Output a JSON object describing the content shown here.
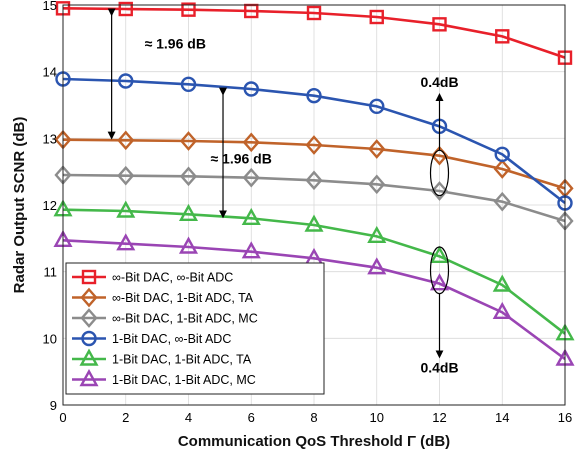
{
  "chart_data": {
    "type": "line",
    "title": "",
    "xlabel": "Communication QoS Threshold Γ (dB)",
    "ylabel": "Radar Output SCNR (dB)",
    "xlim": [
      0,
      16
    ],
    "ylim": [
      9,
      15
    ],
    "xticks": [
      "0",
      "2",
      "4",
      "6",
      "8",
      "10",
      "12",
      "14",
      "16"
    ],
    "yticks": [
      "9",
      "10",
      "11",
      "12",
      "13",
      "14",
      "15"
    ],
    "grid": true,
    "legend_position": "bottom-left",
    "x": [
      0,
      2,
      4,
      6,
      8,
      10,
      12,
      14,
      16
    ],
    "series": [
      {
        "name": "∞-Bit DAC, ∞-Bit ADC",
        "marker": "square",
        "color": "#e8202a",
        "values": [
          14.95,
          14.94,
          14.93,
          14.91,
          14.88,
          14.82,
          14.71,
          14.53,
          14.21
        ]
      },
      {
        "name": "∞-Bit DAC,   1-Bit ADC, TA",
        "marker": "diamond",
        "color": "#c0632a",
        "values": [
          12.98,
          12.97,
          12.96,
          12.94,
          12.9,
          12.84,
          12.74,
          12.54,
          12.25
        ]
      },
      {
        "name": "∞-Bit DAC,   1-Bit ADC, MC",
        "marker": "diamond",
        "color": "#8c8c8c",
        "values": [
          12.45,
          12.44,
          12.43,
          12.41,
          12.37,
          12.31,
          12.21,
          12.05,
          11.76
        ]
      },
      {
        "name": "1-Bit DAC, ∞-Bit ADC",
        "marker": "circle",
        "color": "#2b55b0",
        "values": [
          13.89,
          13.86,
          13.81,
          13.74,
          13.64,
          13.48,
          13.18,
          12.76,
          12.03
        ]
      },
      {
        "name": "1-Bit DAC,   1-Bit ADC, TA",
        "marker": "triangle",
        "color": "#44b84a",
        "values": [
          11.93,
          11.91,
          11.86,
          11.8,
          11.7,
          11.53,
          11.23,
          10.8,
          10.07
        ]
      },
      {
        "name": "1-Bit DAC,   1-Bit ADC, MC",
        "marker": "triangle",
        "color": "#9a45b4",
        "values": [
          11.47,
          11.42,
          11.37,
          11.3,
          11.2,
          11.06,
          10.82,
          10.39,
          9.69
        ]
      }
    ],
    "annotations": [
      {
        "text": "≈ 1.96 dB",
        "x": 2.6,
        "y": 14.35,
        "arrow_x": 1.55,
        "arrow_from": 14.95,
        "arrow_to": 12.98
      },
      {
        "text": "≈ 1.96 dB",
        "x": 4.7,
        "y": 12.62,
        "arrow_x": 5.1,
        "arrow_from": 13.76,
        "arrow_to": 11.8
      },
      {
        "text": "0.4dB",
        "x": 12.0,
        "y": 13.8,
        "ellipse_x": 12.0,
        "ellipse_y": 12.48,
        "ellipse_ry": 0.34,
        "direction": "up"
      },
      {
        "text": "0.4dB",
        "x": 12.0,
        "y": 9.4,
        "ellipse_x": 12.0,
        "ellipse_y": 11.02,
        "ellipse_ry": 0.35,
        "direction": "down"
      }
    ]
  }
}
